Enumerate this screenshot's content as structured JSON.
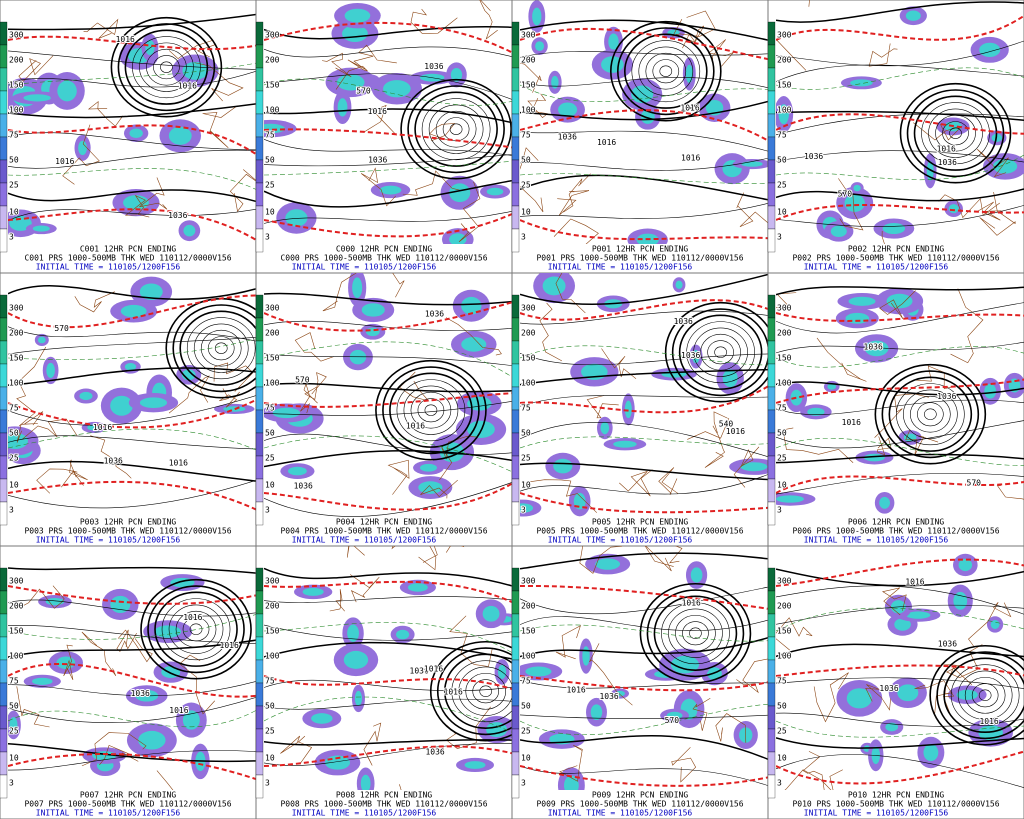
{
  "colorbar_labels": [
    "300",
    "200",
    "150",
    "100",
    "75",
    "50",
    "25",
    "10",
    "3"
  ],
  "panels": [
    {
      "title": "C001 12HR PCN ENDING",
      "line1": "C001 PRS 1000-500MB THK WED 110112/0000V156",
      "line2": "INITIAL TIME = 110105/1200F156",
      "labels": [
        "1016",
        "1036",
        "1016",
        "1016"
      ]
    },
    {
      "title": "C000 12HR PCN ENDING",
      "line1": "C000 PRS 1000-500MB THK WED 110112/0000V156",
      "line2": "INITIAL TIME = 110105/1200F156",
      "labels": [
        "1016",
        "1036",
        "1036",
        "570"
      ]
    },
    {
      "title": "P001 12HR PCN ENDING",
      "line1": "P001 PRS 1000-500MB THK WED 110112/0000V156",
      "line2": "INITIAL TIME = 110105/1200F156",
      "labels": [
        "1036",
        "1016",
        "1016",
        "1016"
      ]
    },
    {
      "title": "P002 12HR PCN ENDING",
      "line1": "P002 PRS 1000-500MB THK WED 110112/0000V156",
      "line2": "INITIAL TIME = 110105/1200F156",
      "labels": [
        "1036",
        "1016",
        "1036",
        "570"
      ]
    },
    {
      "title": "P003 12HR PCN ENDING",
      "line1": "P003 PRS 1000-500MB THK WED 110112/0000V156",
      "line2": "INITIAL TIME = 110105/1200F156",
      "labels": [
        "1036",
        "1016",
        "1016",
        "570"
      ]
    },
    {
      "title": "P004 12HR PCN ENDING",
      "line1": "P004 PRS 1000-500MB THK WED 110112/0000V156",
      "line2": "INITIAL TIME = 110105/1200F156",
      "labels": [
        "1036",
        "1036",
        "1016",
        "570"
      ]
    },
    {
      "title": "P005 12HR PCN ENDING",
      "line1": "P005 PRS 1000-500MB THK WED 110112/0000V156",
      "line2": "INITIAL TIME = 110105/1200F156",
      "labels": [
        "1036",
        "1036",
        "540",
        "1016"
      ]
    },
    {
      "title": "P006 12HR PCN ENDING",
      "line1": "P006 PRS 1000-500MB THK WED 110112/0000V156",
      "line2": "INITIAL TIME = 110105/1200F156",
      "labels": [
        "1036",
        "1036",
        "1016",
        "570"
      ]
    },
    {
      "title": "P007 12HR PCN ENDING",
      "line1": "P007 PRS 1000-500MB THK WED 110112/0000V156",
      "line2": "INITIAL TIME = 110105/1200F156",
      "labels": [
        "1016",
        "1016",
        "1036",
        "1016"
      ]
    },
    {
      "title": "P008 12HR PCN ENDING",
      "line1": "P008 PRS 1000-500MB THK WED 110112/0000V156",
      "line2": "INITIAL TIME = 110105/1200F156",
      "labels": [
        "1036",
        "1036",
        "1016",
        "1016"
      ]
    },
    {
      "title": "P009 12HR PCN ENDING",
      "line1": "P009 PRS 1000-500MB THK WED 110112/0000V156",
      "line2": "INITIAL TIME = 110105/1200F156",
      "labels": [
        "1036",
        "1016",
        "1016",
        "570"
      ]
    },
    {
      "title": "P010 12HR PCN ENDING",
      "line1": "P010 PRS 1000-500MB THK WED 110112/0000V156",
      "line2": "INITIAL TIME = 110105/1200F156",
      "labels": [
        "1016",
        "1036",
        "1036",
        "1016"
      ]
    }
  ]
}
